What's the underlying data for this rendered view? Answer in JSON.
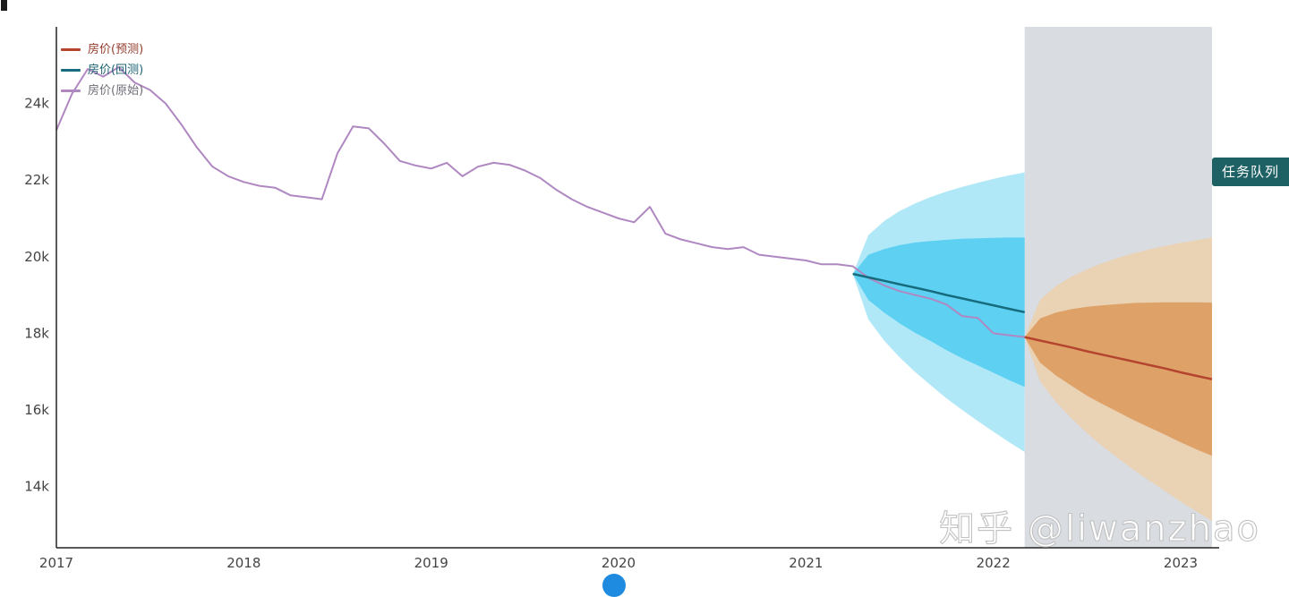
{
  "legend": {
    "items": [
      {
        "label": "房价(预测)",
        "color": "#b5442f",
        "text_color": "#933b2b"
      },
      {
        "label": "房价(回测)",
        "color": "#166b7c",
        "text_color": "#1d6373"
      },
      {
        "label": "房价(原始)",
        "color": "#af87c1",
        "text_color": "#6e6e78"
      }
    ]
  },
  "badge": {
    "label": "任务队列",
    "bg": "#1e6165",
    "color": "#ffffff"
  },
  "watermark": {
    "text": "知乎 @liwanzhao",
    "color": "#ffffff"
  },
  "chart_data": {
    "type": "line",
    "title": "",
    "xlabel": "",
    "ylabel": "",
    "x_ticks": [
      "2017",
      "2018",
      "2019",
      "2020",
      "2021",
      "2022",
      "2023"
    ],
    "x_tick_values": [
      2017,
      2018,
      2019,
      2020,
      2021,
      2022,
      2023
    ],
    "y_ticks": [
      "24k",
      "22k",
      "20k",
      "18k",
      "16k",
      "14k"
    ],
    "y_tick_values": [
      24,
      22,
      20,
      18,
      16,
      14
    ],
    "xlim": [
      2017,
      2023.167
    ],
    "ylim": [
      12.4,
      26
    ],
    "grid": false,
    "axis_color": "#222222",
    "tick_color": "#444444",
    "forecast_region": {
      "x0": 2022.167,
      "x1": 2023.167,
      "color": "#d9dce1"
    },
    "series": [
      {
        "id": "original",
        "name": "房价(原始)",
        "color": "#af87c1",
        "width": 2,
        "x": [
          2017.0,
          2017.083,
          2017.167,
          2017.25,
          2017.333,
          2017.417,
          2017.5,
          2017.583,
          2017.667,
          2017.75,
          2017.833,
          2017.917,
          2018.0,
          2018.083,
          2018.167,
          2018.25,
          2018.333,
          2018.417,
          2018.5,
          2018.583,
          2018.667,
          2018.75,
          2018.833,
          2018.917,
          2019.0,
          2019.083,
          2019.167,
          2019.25,
          2019.333,
          2019.417,
          2019.5,
          2019.583,
          2019.667,
          2019.75,
          2019.833,
          2019.917,
          2020.0,
          2020.083,
          2020.167,
          2020.25,
          2020.333,
          2020.417,
          2020.5,
          2020.583,
          2020.667,
          2020.75,
          2020.833,
          2020.917,
          2021.0,
          2021.083,
          2021.167,
          2021.25,
          2021.333,
          2021.417,
          2021.5,
          2021.583,
          2021.667,
          2021.75,
          2021.833,
          2021.917,
          2022.0,
          2022.083,
          2022.167
        ],
        "y": [
          23.3,
          24.25,
          24.9,
          24.7,
          24.95,
          24.55,
          24.35,
          24.0,
          23.45,
          22.85,
          22.35,
          22.1,
          21.95,
          21.85,
          21.8,
          21.6,
          21.55,
          21.5,
          22.7,
          23.4,
          23.35,
          22.95,
          22.5,
          22.38,
          22.3,
          22.45,
          22.1,
          22.35,
          22.45,
          22.4,
          22.25,
          22.05,
          21.75,
          21.5,
          21.3,
          21.15,
          21.0,
          20.9,
          21.3,
          20.6,
          20.45,
          20.35,
          20.25,
          20.2,
          20.25,
          20.05,
          20.0,
          19.95,
          19.9,
          19.8,
          19.8,
          19.75,
          19.45,
          19.25,
          19.1,
          19.0,
          18.9,
          18.75,
          18.45,
          18.4,
          18.0,
          17.95,
          17.9
        ]
      },
      {
        "id": "backtest",
        "name": "房价(回测)",
        "color": "#166b7c",
        "width": 2.5,
        "x": [
          2021.25,
          2021.333,
          2021.417,
          2021.5,
          2021.583,
          2021.667,
          2021.75,
          2021.833,
          2021.917,
          2022.0,
          2022.083,
          2022.167
        ],
        "y": [
          19.55,
          19.46,
          19.37,
          19.28,
          19.19,
          19.1,
          19.0,
          18.91,
          18.82,
          18.73,
          18.64,
          18.55
        ],
        "bands": [
          {
            "level": "outer",
            "color": "#a9e5f7",
            "opacity": 0.9,
            "upper": [
              19.55,
              20.56,
              20.93,
              21.19,
              21.39,
              21.56,
              21.7,
              21.82,
              21.93,
              22.03,
              22.12,
              22.2
            ],
            "lower": [
              19.55,
              18.36,
              17.81,
              17.37,
              16.99,
              16.64,
              16.3,
              16.0,
              15.71,
              15.43,
              15.16,
              14.9
            ]
          },
          {
            "level": "inner",
            "color": "#5ad0f2",
            "opacity": 0.95,
            "upper": [
              19.55,
              20.05,
              20.2,
              20.3,
              20.37,
              20.41,
              20.44,
              20.47,
              20.48,
              20.49,
              20.5,
              20.5
            ],
            "lower": [
              19.55,
              18.87,
              18.54,
              18.26,
              18.01,
              17.79,
              17.56,
              17.35,
              17.16,
              16.97,
              16.78,
              16.6
            ]
          }
        ]
      },
      {
        "id": "forecast",
        "name": "房价(预测)",
        "color": "#b5442f",
        "width": 2.5,
        "x": [
          2022.167,
          2022.25,
          2022.333,
          2022.417,
          2022.5,
          2022.583,
          2022.667,
          2022.75,
          2022.833,
          2022.917,
          2023.0,
          2023.083,
          2023.167
        ],
        "y": [
          17.9,
          17.81,
          17.72,
          17.63,
          17.53,
          17.44,
          17.35,
          17.26,
          17.17,
          17.08,
          16.98,
          16.89,
          16.8
        ],
        "bands": [
          {
            "level": "outer",
            "color": "#ecd0ad",
            "opacity": 0.85,
            "upper": [
              17.9,
              18.88,
              19.23,
              19.48,
              19.67,
              19.83,
              19.97,
              20.09,
              20.19,
              20.28,
              20.36,
              20.43,
              20.5
            ],
            "lower": [
              17.9,
              16.74,
              16.21,
              15.78,
              15.39,
              15.05,
              14.73,
              14.43,
              14.15,
              13.88,
              13.6,
              13.35,
              13.1
            ]
          },
          {
            "level": "inner",
            "color": "#dd9c5f",
            "opacity": 0.9,
            "upper": [
              17.9,
              18.39,
              18.54,
              18.63,
              18.69,
              18.73,
              18.76,
              18.79,
              18.8,
              18.81,
              18.81,
              18.81,
              18.8
            ],
            "lower": [
              17.9,
              17.23,
              16.9,
              16.63,
              16.37,
              16.15,
              15.94,
              15.73,
              15.54,
              15.35,
              15.15,
              14.97,
              14.8
            ]
          }
        ]
      }
    ]
  }
}
